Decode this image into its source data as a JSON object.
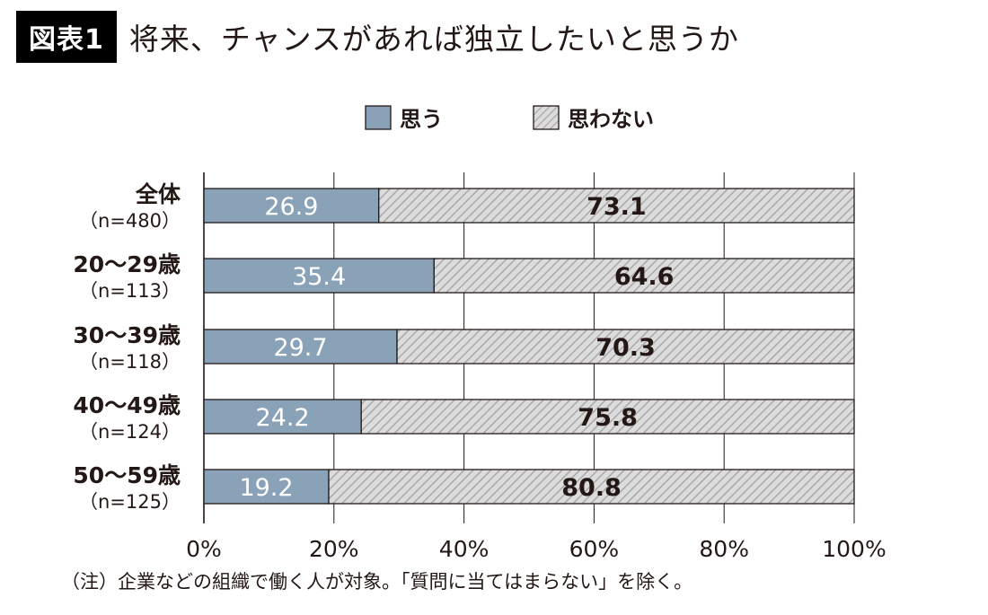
{
  "figure_label": "図表1",
  "title": "将来、チャンスがあれば独立したいと思うか",
  "note": "（注）企業などの組織で働く人が対象。「質問に当てはまらない」を除く。",
  "colors": {
    "思う": "#8aa2b8",
    "思わない": "#d9d9d9",
    "hatch": "#a8a8a8",
    "text": "#231815"
  },
  "chart_data": {
    "type": "bar",
    "orientation": "horizontal",
    "stacked": true,
    "title": "将来、チャンスがあれば独立したいと思うか",
    "categories": [
      "全体",
      "20〜29歳",
      "30〜39歳",
      "40〜49歳",
      "50〜59歳"
    ],
    "category_sublabels": [
      "（n=480）",
      "（n=113）",
      "（n=118）",
      "（n=124）",
      "（n=125）"
    ],
    "series": [
      {
        "name": "思う",
        "values": [
          26.9,
          35.4,
          29.7,
          24.2,
          19.2
        ],
        "pattern": "solid"
      },
      {
        "name": "思わない",
        "values": [
          73.1,
          64.6,
          70.3,
          75.8,
          80.8
        ],
        "pattern": "hatched"
      }
    ],
    "xlim": [
      0,
      100
    ],
    "xticks": [
      "0%",
      "20%",
      "40%",
      "60%",
      "80%",
      "100%"
    ],
    "grid": true,
    "legend_position": "top"
  }
}
